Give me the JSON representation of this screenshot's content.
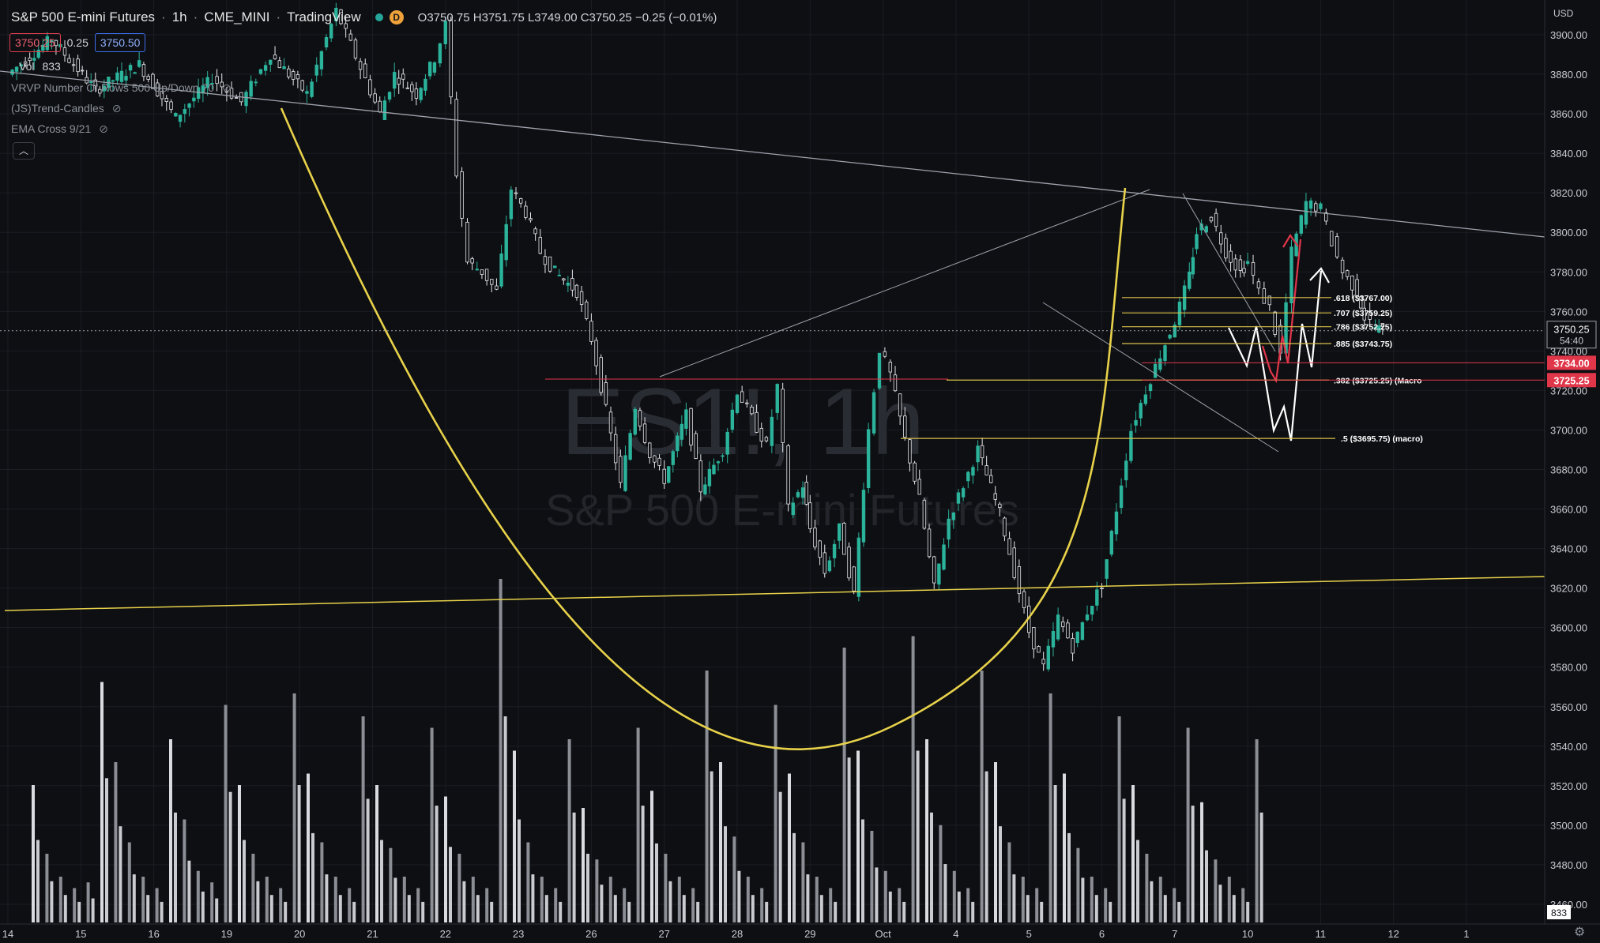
{
  "header": {
    "symbol_name": "S&P 500 E-mini Futures",
    "interval": "1h",
    "exchange": "CME_MINI",
    "platform": "TradingView",
    "status_badge": "D",
    "open": "O3750.75",
    "high": "H3751.75",
    "low": "L3749.00",
    "close": "C3750.25",
    "change": "−0.25 (−0.01%)"
  },
  "quote": {
    "bid": "3750.25",
    "spread": "0.25",
    "ask": "3750.50"
  },
  "indicators": [
    {
      "label": "Vol",
      "value": "833"
    },
    {
      "label": "VRVP Number Of Rows 500 Up/Down 70"
    },
    {
      "label": "(JS)Trend-Candles"
    },
    {
      "label": "EMA Cross 9/21"
    }
  ],
  "collapse_icon": "chevron-up-icon",
  "currency": "USD",
  "watermark": {
    "symbol": "ES1!, 1h",
    "name": "S&P 500 E-mini Futures"
  },
  "colors": {
    "background": "#0e0f13",
    "yellow": "#e8d24a",
    "red": "#e0364a",
    "white": "#ffffff",
    "grid": "#1b1d24"
  },
  "chart_data": {
    "type": "candlestick",
    "ylim": [
      3450,
      3910
    ],
    "y_ticks": [
      "3900.00",
      "3880.00",
      "3860.00",
      "3840.00",
      "3820.00",
      "3800.00",
      "3780.00",
      "3760.00",
      "3740.00",
      "3720.00",
      "3700.00",
      "3680.00",
      "3660.00",
      "3640.00",
      "3620.00",
      "3600.00",
      "3580.00",
      "3560.00",
      "3540.00",
      "3520.00",
      "3500.00",
      "3480.00",
      "3460.00"
    ],
    "x_ticks": [
      "14",
      "15",
      "16",
      "19",
      "20",
      "21",
      "22",
      "23",
      "26",
      "27",
      "28",
      "29",
      "Oct",
      "4",
      "5",
      "6",
      "7",
      "10",
      "11",
      "12",
      "1"
    ],
    "current_price": {
      "value": "3750.25",
      "countdown": "54:40"
    },
    "volume_label": "833",
    "price_tags": [
      {
        "value": 3734.0,
        "label": "3734.00"
      },
      {
        "value": 3725.25,
        "label": "3725.25"
      }
    ],
    "fib_levels": [
      {
        "label": ".618 ($3767.00)",
        "price": 3767.0
      },
      {
        "label": ".707 ($3759.25)",
        "price": 3759.25
      },
      {
        "label": ".786 ($3752.25)",
        "price": 3752.25
      },
      {
        "label": ".885 ($3743.75)",
        "price": 3743.75
      },
      {
        "label": ".382 ($3725.25) (Macro",
        "price": 3725.25
      },
      {
        "label": ".5 ($3695.75) (macro)",
        "price": 3695.75
      }
    ],
    "price_path": [
      [
        0,
        3880
      ],
      [
        0.6,
        3898
      ],
      [
        1.2,
        3872
      ],
      [
        1.8,
        3885
      ],
      [
        2.3,
        3858
      ],
      [
        2.8,
        3878
      ],
      [
        3.2,
        3866
      ],
      [
        3.6,
        3890
      ],
      [
        4.1,
        3870
      ],
      [
        4.5,
        3912
      ],
      [
        4.7,
        3895
      ],
      [
        5.1,
        3860
      ],
      [
        5.3,
        3880
      ],
      [
        5.6,
        3870
      ],
      [
        5.85,
        3888
      ],
      [
        6.0,
        3905
      ],
      [
        6.15,
        3830
      ],
      [
        6.3,
        3785
      ],
      [
        6.5,
        3780
      ],
      [
        6.7,
        3770
      ],
      [
        6.9,
        3822
      ],
      [
        7.1,
        3810
      ],
      [
        7.3,
        3790
      ],
      [
        7.5,
        3780
      ],
      [
        7.8,
        3770
      ],
      [
        8.0,
        3746
      ],
      [
        8.2,
        3710
      ],
      [
        8.4,
        3672
      ],
      [
        8.6,
        3712
      ],
      [
        8.8,
        3688
      ],
      [
        9.0,
        3675
      ],
      [
        9.3,
        3708
      ],
      [
        9.5,
        3670
      ],
      [
        9.8,
        3690
      ],
      [
        10.0,
        3720
      ],
      [
        10.2,
        3706
      ],
      [
        10.4,
        3692
      ],
      [
        10.55,
        3722
      ],
      [
        10.7,
        3660
      ],
      [
        10.9,
        3672
      ],
      [
        11.0,
        3650
      ],
      [
        11.2,
        3628
      ],
      [
        11.4,
        3650
      ],
      [
        11.6,
        3617
      ],
      [
        11.8,
        3700
      ],
      [
        11.95,
        3741
      ],
      [
        12.1,
        3728
      ],
      [
        12.3,
        3695
      ],
      [
        12.5,
        3665
      ],
      [
        12.7,
        3620
      ],
      [
        12.9,
        3655
      ],
      [
        13.1,
        3672
      ],
      [
        13.3,
        3690
      ],
      [
        13.6,
        3658
      ],
      [
        13.8,
        3628
      ],
      [
        14.0,
        3598
      ],
      [
        14.2,
        3580
      ],
      [
        14.4,
        3605
      ],
      [
        14.6,
        3590
      ],
      [
        14.8,
        3608
      ],
      [
        15.0,
        3622
      ],
      [
        15.2,
        3660
      ],
      [
        15.4,
        3700
      ],
      [
        15.6,
        3720
      ],
      [
        15.8,
        3738
      ],
      [
        16.0,
        3755
      ],
      [
        16.2,
        3778
      ],
      [
        16.3,
        3800
      ],
      [
        16.5,
        3808
      ],
      [
        16.7,
        3790
      ],
      [
        16.9,
        3780
      ],
      [
        17.0,
        3785
      ],
      [
        17.15,
        3770
      ],
      [
        17.3,
        3762
      ],
      [
        17.45,
        3738
      ],
      [
        17.6,
        3790
      ],
      [
        17.8,
        3815
      ],
      [
        18.0,
        3812
      ],
      [
        18.15,
        3795
      ],
      [
        18.3,
        3780
      ],
      [
        18.5,
        3770
      ],
      [
        18.6,
        3757
      ],
      [
        18.75,
        3752
      ],
      [
        18.85,
        3750.25
      ]
    ],
    "volume": [
      120,
      60,
      40,
      30,
      35,
      210,
      140,
      70,
      40,
      30,
      160,
      90,
      45,
      35,
      190,
      120,
      60,
      40,
      30,
      200,
      130,
      70,
      40,
      30,
      180,
      120,
      65,
      40,
      30,
      170,
      110,
      60,
      40,
      30,
      300,
      150,
      70,
      40,
      30,
      160,
      100,
      55,
      40,
      30,
      170,
      115,
      60,
      40,
      30,
      220,
      140,
      75,
      40,
      30,
      190,
      130,
      70,
      40,
      30,
      240,
      150,
      80,
      45,
      30,
      250,
      160,
      85,
      45,
      30,
      220,
      140,
      70,
      40,
      30,
      200,
      130,
      65,
      40,
      30,
      180,
      120,
      60,
      40,
      30,
      170,
      105,
      55,
      40,
      30,
      160
    ]
  }
}
